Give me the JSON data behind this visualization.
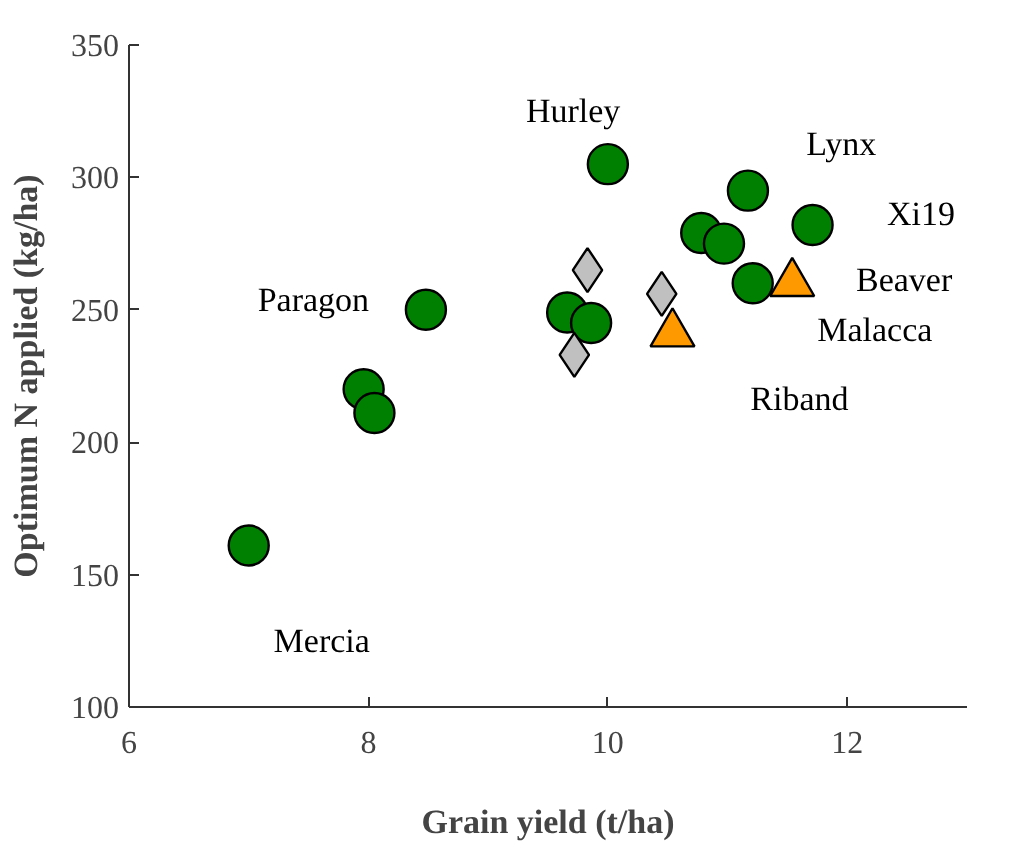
{
  "chart_data": {
    "type": "scatter",
    "xlabel": "Grain yield (t/ha)",
    "ylabel": "Optimum N applied (kg/ha)",
    "xlim": [
      6,
      13
    ],
    "xticks": [
      6,
      8,
      10,
      12
    ],
    "ylim": [
      100,
      350
    ],
    "yticks": [
      100,
      150,
      200,
      250,
      300,
      350
    ],
    "grid": false,
    "series": [
      {
        "color": "#008000",
        "marker": "circle",
        "x": [
          7.0,
          7.96,
          8.05,
          8.48,
          10.0,
          9.66,
          9.86,
          10.78,
          10.97,
          11.17,
          11.71,
          11.21
        ],
        "values": [
          161,
          220,
          211,
          250,
          305,
          249,
          245,
          279,
          275,
          295,
          282,
          260
        ]
      },
      {
        "color": "#c0c0c0",
        "marker": "diamond",
        "x": [
          9.83,
          10.45,
          9.72
        ],
        "values": [
          265,
          256,
          233
        ]
      },
      {
        "color": "#ff9900",
        "marker": "triangle",
        "x": [
          10.54,
          11.54
        ],
        "values": [
          241,
          260
        ]
      }
    ],
    "annotations": [
      "Hurley",
      "Lynx",
      "Xi19",
      "Beaver",
      "Malacca",
      "Riband",
      "Paragon",
      "Mercia"
    ]
  }
}
